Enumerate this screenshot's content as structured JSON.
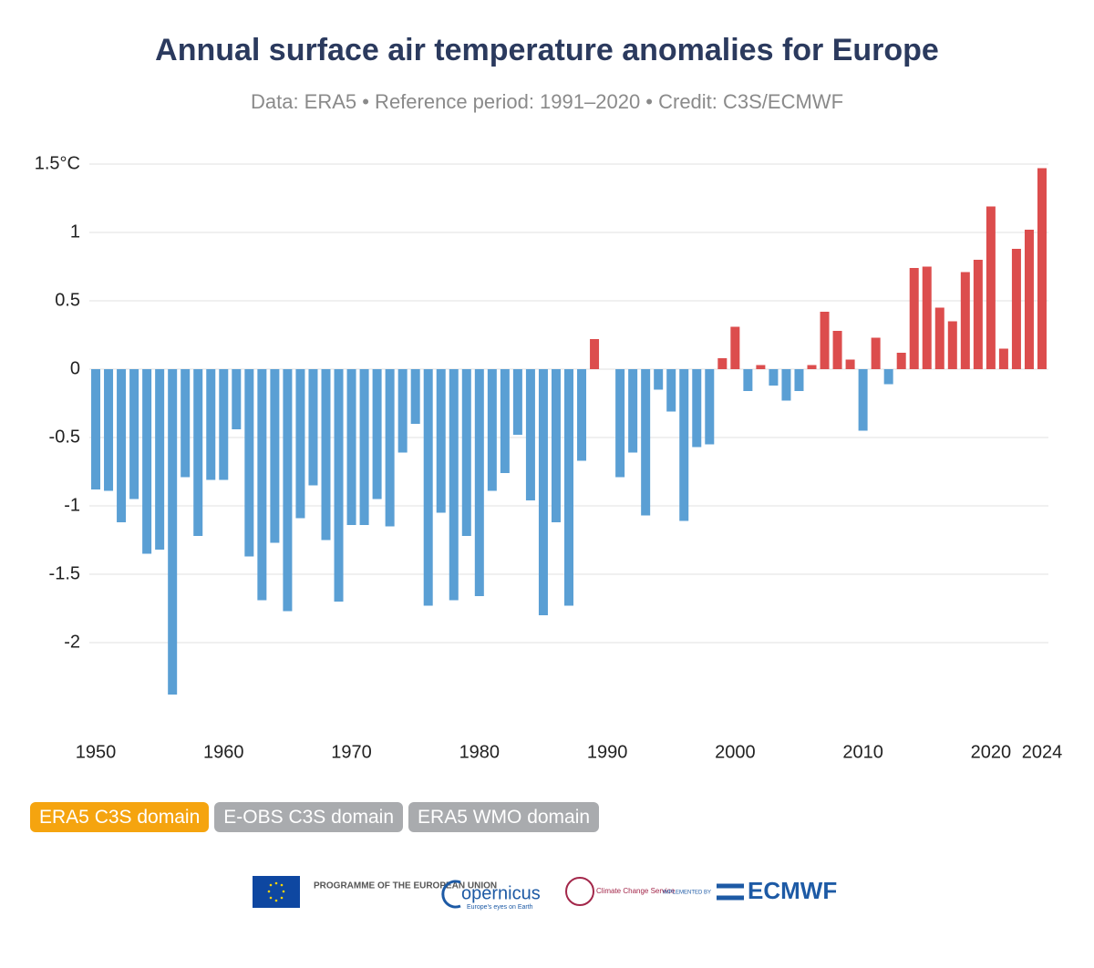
{
  "chart_data": {
    "type": "bar",
    "title": "Annual surface air temperature anomalies for Europe",
    "subtitle": "Data: ERA5 • Reference period: 1991–2020 • Credit: C3S/ECMWF",
    "x": [
      1950,
      1951,
      1952,
      1953,
      1954,
      1955,
      1956,
      1957,
      1958,
      1959,
      1960,
      1961,
      1962,
      1963,
      1964,
      1965,
      1966,
      1967,
      1968,
      1969,
      1970,
      1971,
      1972,
      1973,
      1974,
      1975,
      1976,
      1977,
      1978,
      1979,
      1980,
      1981,
      1982,
      1983,
      1984,
      1985,
      1986,
      1987,
      1988,
      1989,
      1990,
      1991,
      1992,
      1993,
      1994,
      1995,
      1996,
      1997,
      1998,
      1999,
      2000,
      2001,
      2002,
      2003,
      2004,
      2005,
      2006,
      2007,
      2008,
      2009,
      2010,
      2011,
      2012,
      2013,
      2014,
      2015,
      2016,
      2017,
      2018,
      2019,
      2020,
      2021,
      2022,
      2023,
      2024
    ],
    "values": [
      -0.88,
      -0.89,
      -1.12,
      -0.95,
      -1.35,
      -1.32,
      -2.38,
      -0.79,
      -1.22,
      -0.81,
      -0.81,
      -0.44,
      -1.37,
      -1.69,
      -1.27,
      -1.77,
      -1.09,
      -0.85,
      -1.25,
      -1.7,
      -1.14,
      -1.14,
      -0.95,
      -1.15,
      -0.61,
      -0.4,
      -1.73,
      -1.05,
      -1.69,
      -1.22,
      -1.66,
      -0.89,
      -0.76,
      -0.48,
      -0.96,
      -1.8,
      -1.12,
      -1.73,
      -0.67,
      0.22,
      0,
      -0.79,
      -0.61,
      -1.07,
      -0.15,
      -0.31,
      -1.11,
      -0.57,
      -0.55,
      0.08,
      0.31,
      -0.16,
      0.03,
      -0.12,
      -0.23,
      -0.16,
      0.03,
      0.42,
      0.28,
      0.07,
      -0.45,
      0.23,
      -0.11,
      0.12,
      0.74,
      0.75,
      0.45,
      0.35,
      0.71,
      0.8,
      1.19,
      0.15,
      0.88,
      1.02,
      1.47
    ],
    "positive_color": "#dc4d4d",
    "negative_color": "#5a9fd4",
    "xlim": [
      1949.5,
      2024.5
    ],
    "xticks": [
      1950,
      1960,
      1970,
      1980,
      1990,
      2000,
      2010,
      2020,
      2024
    ],
    "ylim": [
      -2.5,
      1.5
    ],
    "yticks": [
      {
        "value": 1.5,
        "label": "1.5°C"
      },
      1,
      0.5,
      0,
      -0.5,
      -1,
      -1.5,
      -2
    ],
    "grid": true
  },
  "tabs": [
    "ERA5 C3S domain",
    "E-OBS C3S domain",
    "ERA5 WMO domain"
  ],
  "logos": {
    "eu": "PROGRAMME OF THE EUROPEAN UNION",
    "copernicus": "opernicus",
    "copernicus_tag": "Europe's eyes on Earth",
    "c3s": "Climate Change Service",
    "implemented": "IMPLEMENTED BY",
    "ecmwf": "ECMWF"
  }
}
